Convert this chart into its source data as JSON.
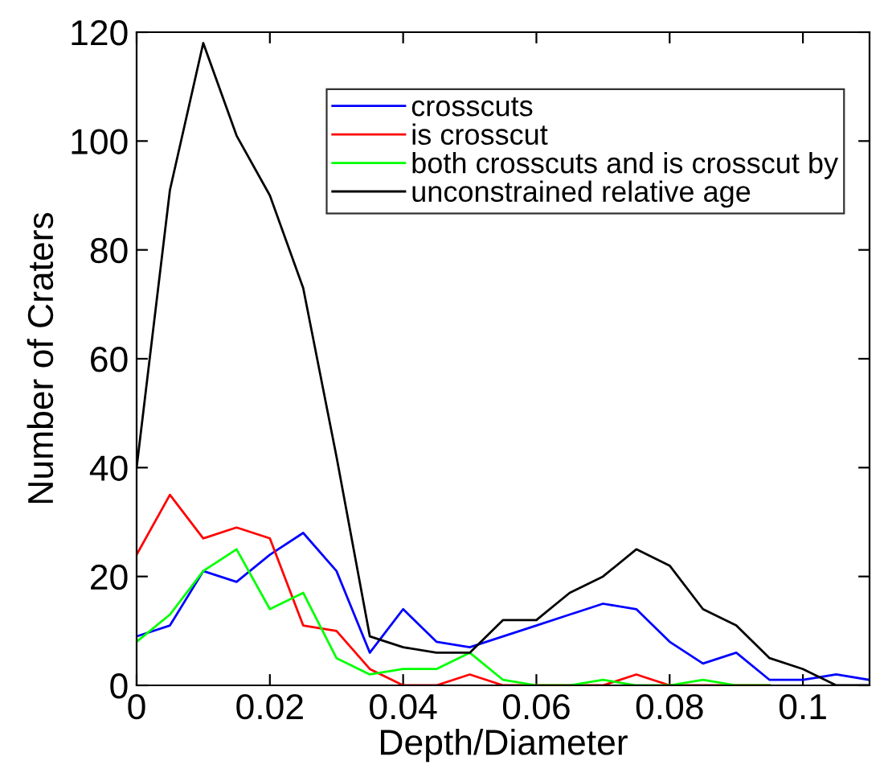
{
  "chart_data": {
    "type": "line",
    "xlabel": "Depth/Diameter",
    "ylabel": "Number of Craters",
    "x": [
      0,
      0.005,
      0.01,
      0.015,
      0.02,
      0.025,
      0.03,
      0.035,
      0.04,
      0.045,
      0.05,
      0.055,
      0.06,
      0.065,
      0.07,
      0.075,
      0.08,
      0.085,
      0.09,
      0.095,
      0.1,
      0.105,
      0.11
    ],
    "series": [
      {
        "name": "crosscuts",
        "color": "#0000ff",
        "values": [
          9,
          11,
          21,
          19,
          24,
          28,
          21,
          6,
          14,
          8,
          7,
          9,
          11,
          13,
          15,
          14,
          8,
          4,
          6,
          1,
          1,
          2,
          1
        ]
      },
      {
        "name": "is crosscut",
        "color": "#ff0000",
        "values": [
          24,
          35,
          27,
          29,
          27,
          11,
          10,
          3,
          0,
          0,
          2,
          0,
          0,
          0,
          0,
          2,
          0,
          0,
          0,
          0,
          null,
          null,
          null
        ]
      },
      {
        "name": "both crosscuts and is crosscut by",
        "color": "#00ff00",
        "values": [
          8,
          13,
          21,
          25,
          14,
          17,
          5,
          2,
          3,
          3,
          6,
          1,
          0,
          0,
          1,
          0,
          0,
          1,
          0,
          0,
          null,
          null,
          null
        ]
      },
      {
        "name": "unconstrained relative age",
        "color": "#000000",
        "values": [
          40,
          91,
          118,
          101,
          90,
          73,
          42,
          9,
          7,
          6,
          6,
          12,
          12,
          17,
          20,
          25,
          22,
          14,
          11,
          5,
          3,
          0,
          0
        ]
      }
    ],
    "xlim": [
      0,
      0.11
    ],
    "ylim": [
      0,
      120
    ],
    "xticks": [
      0,
      0.02,
      0.04,
      0.06,
      0.08,
      0.1
    ],
    "yticks": [
      0,
      20,
      40,
      60,
      80,
      100,
      120
    ],
    "legend": "top right",
    "grid": false
  }
}
